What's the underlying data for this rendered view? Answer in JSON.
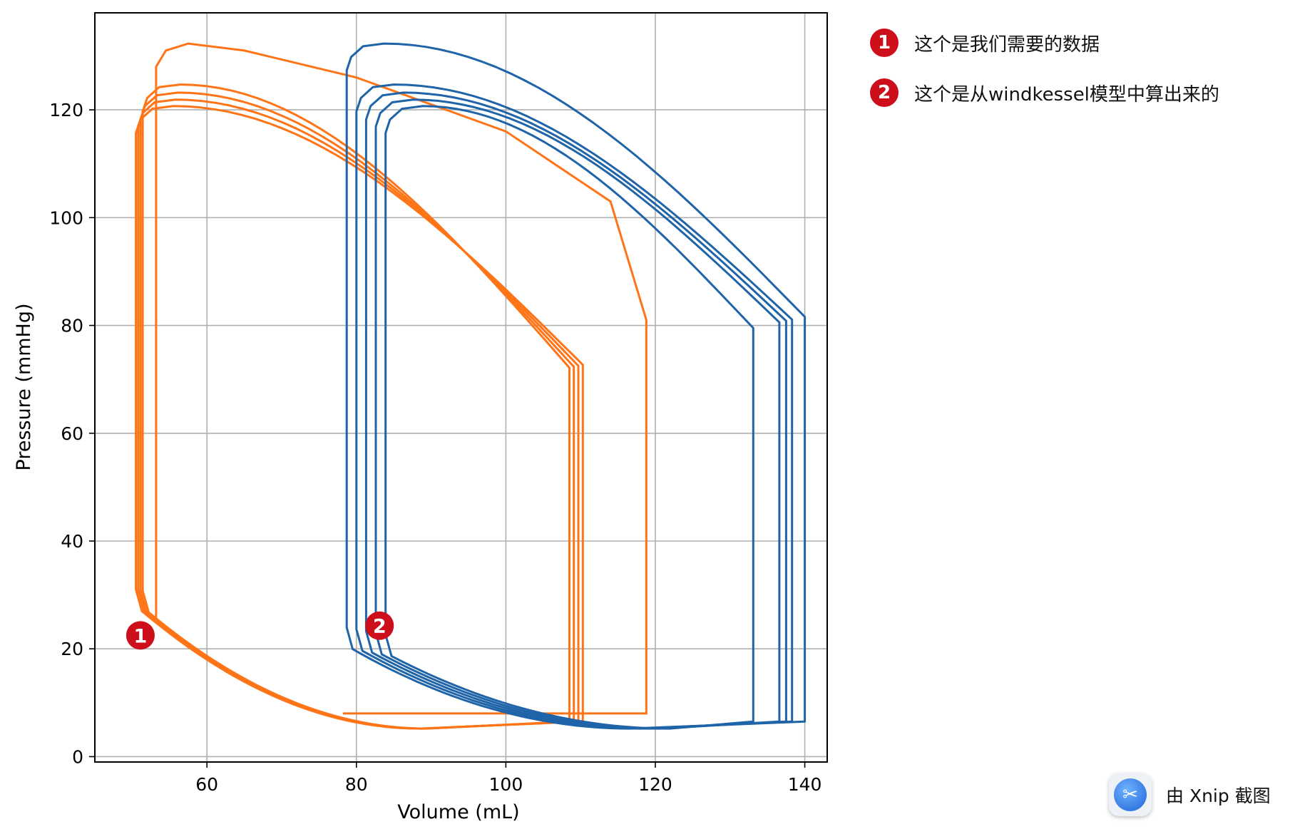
{
  "chart_data": {
    "type": "line",
    "xlabel": "Volume (mL)",
    "ylabel": "Pressure (mmHg)",
    "xlim": [
      45,
      143
    ],
    "ylim": [
      -1,
      138
    ],
    "xticks": [
      60,
      80,
      100,
      120,
      140
    ],
    "yticks": [
      0,
      20,
      40,
      60,
      80,
      100,
      120
    ],
    "grid": true,
    "colors": {
      "orange": "#ff7417",
      "blue": "#1f64a8"
    },
    "series": [
      {
        "color": "#ff7417",
        "loops": [
          {
            "vmin": 50.5,
            "vmax": 110.3,
            "pmax": 120.7
          },
          {
            "vmin": 50.8,
            "vmax": 109.7,
            "pmax": 121.9
          },
          {
            "vmin": 51.1,
            "vmax": 109.1,
            "pmax": 123.2
          },
          {
            "vmin": 51.4,
            "vmax": 108.5,
            "pmax": 124.7
          }
        ],
        "first_cycle": [
          [
            78.2,
            8
          ],
          [
            118.8,
            8
          ],
          [
            118.8,
            81
          ],
          [
            114,
            103
          ],
          [
            100,
            116
          ],
          [
            80,
            126
          ],
          [
            65,
            131
          ],
          [
            57.5,
            132.3
          ],
          [
            54.5,
            131
          ],
          [
            53.2,
            128
          ],
          [
            53.2,
            100
          ],
          [
            53.2,
            60
          ],
          [
            53.2,
            25
          ]
        ]
      },
      {
        "color": "#1f64a8",
        "loops": [
          {
            "vmin": 83.9,
            "vmax": 133.1,
            "pmax": 120.7
          },
          {
            "vmin": 82.6,
            "vmax": 136.6,
            "pmax": 121.9
          },
          {
            "vmin": 81.3,
            "vmax": 137.5,
            "pmax": 123.2
          },
          {
            "vmin": 80.0,
            "vmax": 138.3,
            "pmax": 124.7
          },
          {
            "vmin": 78.7,
            "vmax": 140.0,
            "pmax": 132.3
          }
        ]
      }
    ],
    "annotations": [
      {
        "label": "1",
        "x": 51.1,
        "y": 22.5
      },
      {
        "label": "2",
        "x": 83.1,
        "y": 24.3
      }
    ]
  },
  "notes": [
    {
      "badge": "1",
      "text": "这个是我们需要的数据"
    },
    {
      "badge": "2",
      "text": "这个是从windkessel模型中算出来的"
    }
  ],
  "watermark": {
    "text": "由 Xnip 截图",
    "icon": "xnip-scissors-icon"
  }
}
